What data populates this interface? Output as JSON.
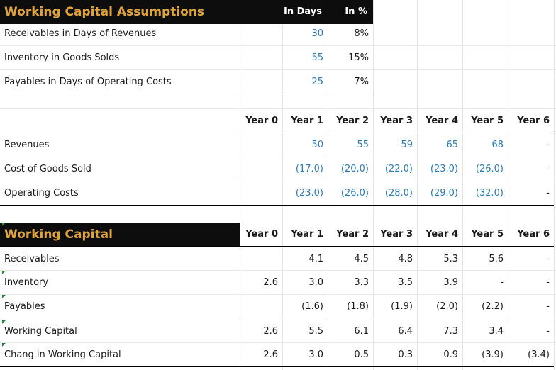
{
  "assumptions": {
    "title": "Working Capital Assumptions",
    "col_days": "In Days",
    "col_pct": "In %",
    "rows": [
      {
        "label": "Receivables in Days of Revenues",
        "days": "30",
        "pct": "8%"
      },
      {
        "label": "Inventory in Goods Solds",
        "days": "55",
        "pct": "15%"
      },
      {
        "label": "Payables in Days of Operating Costs",
        "days": "25",
        "pct": "7%"
      }
    ]
  },
  "years": [
    "Year 0",
    "Year 1",
    "Year 2",
    "Year 3",
    "Year 4",
    "Year 5",
    "Year 6"
  ],
  "operations": {
    "rows": [
      {
        "label": "Revenues",
        "values": [
          "",
          "50",
          "55",
          "59",
          "65",
          "68",
          "-"
        ]
      },
      {
        "label": "Cost of Goods Sold",
        "values": [
          "",
          "(17.0)",
          "(20.0)",
          "(22.0)",
          "(23.0)",
          "(26.0)",
          "-"
        ]
      },
      {
        "label": "Operating Costs",
        "values": [
          "",
          "(23.0)",
          "(26.0)",
          "(28.0)",
          "(29.0)",
          "(32.0)",
          "-"
        ]
      }
    ]
  },
  "working_capital": {
    "title": "Working Capital",
    "rows": [
      {
        "label": "Receivables",
        "values": [
          "",
          "4.1",
          "4.5",
          "4.8",
          "5.3",
          "5.6",
          "-"
        ]
      },
      {
        "label": "Inventory",
        "values": [
          "2.6",
          "3.0",
          "3.3",
          "3.5",
          "3.9",
          "-",
          "-"
        ]
      },
      {
        "label": "Payables",
        "values": [
          "",
          "(1.6)",
          "(1.8)",
          "(1.9)",
          "(2.0)",
          "(2.2)",
          "-"
        ]
      },
      {
        "label": "Working Capital",
        "values": [
          "2.6",
          "5.5",
          "6.1",
          "6.4",
          "7.3",
          "3.4",
          "-"
        ]
      },
      {
        "label": "Chang in Working Capital",
        "values": [
          "2.6",
          "3.0",
          "0.5",
          "0.3",
          "0.9",
          "(3.9)",
          "(3.4)"
        ]
      }
    ]
  },
  "colors": {
    "title_accent": "#e0a33a",
    "header_bg": "#0d0d0d",
    "input_blue": "#2c7bb6"
  }
}
